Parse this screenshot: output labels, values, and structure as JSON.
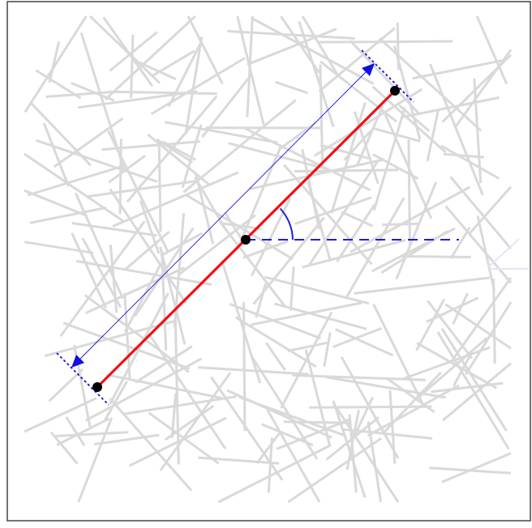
{
  "figure": {
    "description_free": true,
    "background_segment_count": 230,
    "colors": {
      "background_segments": "#d9d9d9",
      "highlight_segment": "#ee1111",
      "endpoint": "#000000",
      "dimension_line": "#1010e0",
      "reference_line": "#1f1fd0",
      "angle_arc": "#1f1fd0",
      "frame": "#444444"
    },
    "highlight_segment": {
      "angle_deg": 45,
      "has_center_point": true,
      "has_endpoints": true
    },
    "annotations": [
      "length-dimension-arrow",
      "horizontal-reference-dashed-line",
      "angle-arc"
    ]
  }
}
